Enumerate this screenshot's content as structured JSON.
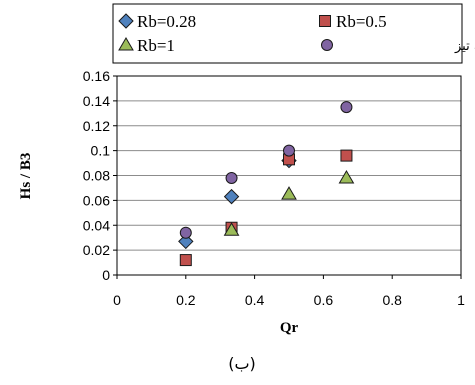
{
  "chart_data": {
    "type": "scatter",
    "title": "",
    "xlabel": "Qr",
    "ylabel": "Hs / B3",
    "xlim": [
      0,
      1
    ],
    "ylim": [
      0,
      0.16
    ],
    "x_ticks": [
      "0",
      "0.2",
      "0.4",
      "0.6",
      "0.8",
      "1"
    ],
    "y_ticks": [
      "0",
      "0.02",
      "0.04",
      "0.06",
      "0.08",
      "0.1",
      "0.12",
      "0.14",
      "0.16"
    ],
    "grid": "horizontal",
    "legend_position": "top",
    "series": [
      {
        "name": "Rb=0.28",
        "marker": "diamond",
        "color": "#4F81BD",
        "x": [
          0.2,
          0.333,
          0.5
        ],
        "y": [
          0.027,
          0.063,
          0.092
        ]
      },
      {
        "name": "Rb=0.5",
        "marker": "square",
        "color": "#C0504D",
        "x": [
          0.2,
          0.333,
          0.5,
          0.667
        ],
        "y": [
          0.012,
          0.038,
          0.093,
          0.096
        ]
      },
      {
        "name": "Rb=1",
        "marker": "triangle",
        "color": "#9BBB59",
        "x": [
          0.333,
          0.5,
          0.667
        ],
        "y": [
          0.036,
          0.065,
          0.078
        ]
      },
      {
        "name": "اتصال لبه تیز",
        "marker": "circle",
        "color": "#8064A2",
        "x": [
          0.2,
          0.333,
          0.5,
          0.667
        ],
        "y": [
          0.034,
          0.078,
          0.1,
          0.135
        ]
      }
    ],
    "caption": "(ب)"
  }
}
